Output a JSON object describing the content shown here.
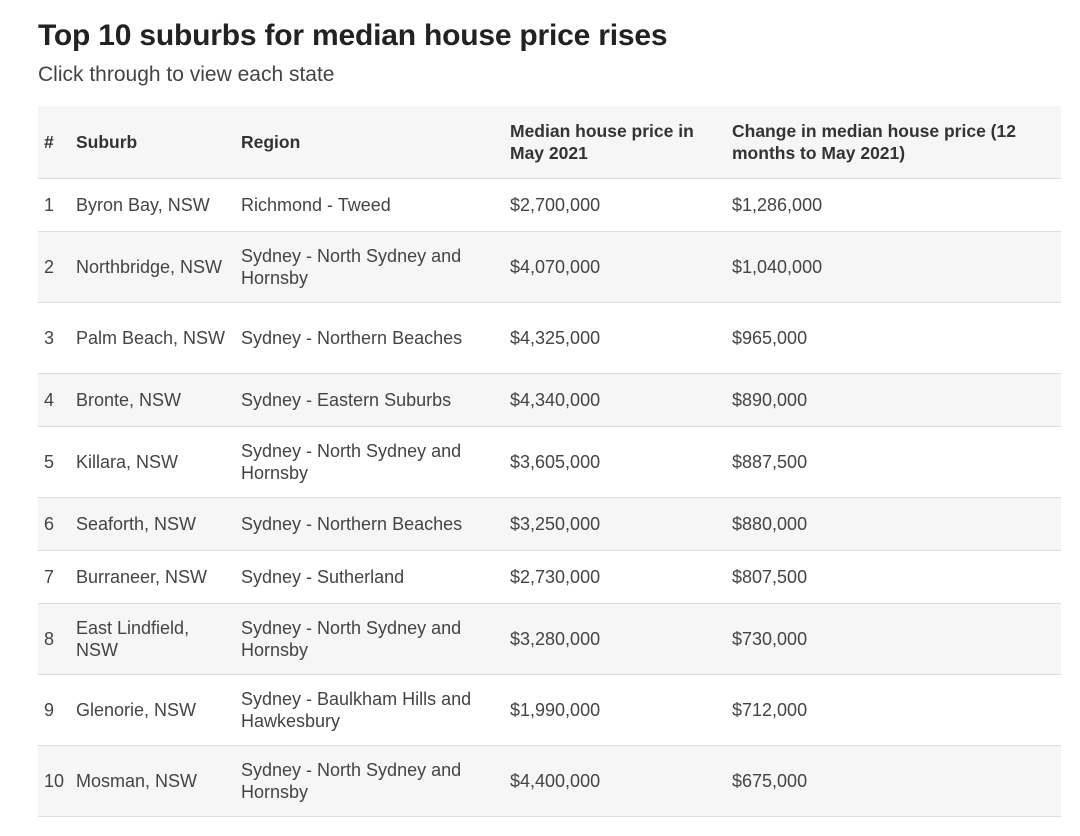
{
  "title": "Top 10 suburbs for median house price rises",
  "subtitle": "Click through to view each state",
  "table": {
    "headers": {
      "rank": "#",
      "suburb": "Suburb",
      "region": "Region",
      "median": "Median house price in May 2021",
      "change": "Change in median house price (12 months to May 2021)"
    },
    "rows": [
      {
        "rank": "1",
        "suburb": "Byron Bay, NSW",
        "region": "Richmond - Tweed",
        "median": "$2,700,000",
        "change": "$1,286,000"
      },
      {
        "rank": "2",
        "suburb": "Northbridge, NSW",
        "region": "Sydney - North Sydney and Hornsby",
        "median": "$4,070,000",
        "change": "$1,040,000"
      },
      {
        "rank": "3",
        "suburb": "Palm Beach, NSW",
        "region": "Sydney - Northern Beaches",
        "median": "$4,325,000",
        "change": "$965,000"
      },
      {
        "rank": "4",
        "suburb": "Bronte, NSW",
        "region": "Sydney - Eastern Suburbs",
        "median": "$4,340,000",
        "change": "$890,000"
      },
      {
        "rank": "5",
        "suburb": "Killara, NSW",
        "region": "Sydney - North Sydney and Hornsby",
        "median": "$3,605,000",
        "change": "$887,500"
      },
      {
        "rank": "6",
        "suburb": "Seaforth, NSW",
        "region": "Sydney - Northern Beaches",
        "median": "$3,250,000",
        "change": "$880,000"
      },
      {
        "rank": "7",
        "suburb": "Burraneer, NSW",
        "region": "Sydney - Sutherland",
        "median": "$2,730,000",
        "change": "$807,500"
      },
      {
        "rank": "8",
        "suburb": "East Lindfield, NSW",
        "region": "Sydney - North Sydney and Hornsby",
        "median": "$3,280,000",
        "change": "$730,000"
      },
      {
        "rank": "9",
        "suburb": "Glenorie, NSW",
        "region": "Sydney - Baulkham Hills and Hawkesbury",
        "median": "$1,990,000",
        "change": "$712,000"
      },
      {
        "rank": "10",
        "suburb": "Mosman, NSW",
        "region": "Sydney - North Sydney and Hornsby",
        "median": "$4,400,000",
        "change": "$675,000"
      }
    ]
  }
}
